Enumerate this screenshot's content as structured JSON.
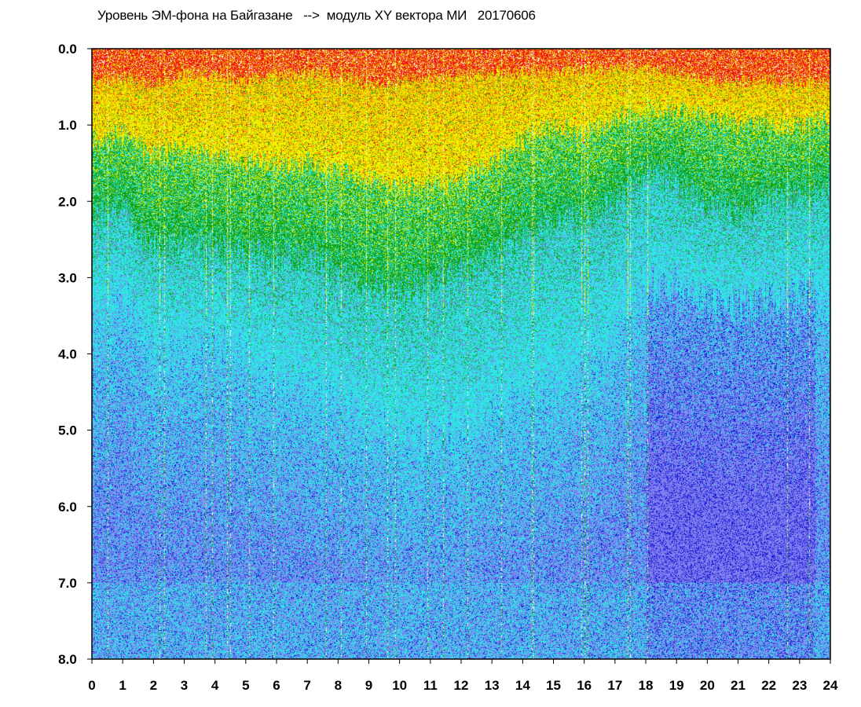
{
  "chart_data": {
    "type": "heatmap",
    "title": "Уровень ЭМ-фона на Байгазане   -->  модуль XY вектора МИ   20170606",
    "xlabel": "",
    "ylabel": "",
    "xlim": [
      0,
      24
    ],
    "ylim": [
      8.0,
      0.0
    ],
    "y_inverted": true,
    "x_ticks": [
      "0",
      "1",
      "2",
      "3",
      "4",
      "5",
      "6",
      "7",
      "8",
      "9",
      "10",
      "11",
      "12",
      "13",
      "14",
      "15",
      "16",
      "17",
      "18",
      "19",
      "20",
      "21",
      "22",
      "23",
      "24"
    ],
    "y_ticks": [
      "0.0",
      "1.0",
      "2.0",
      "3.0",
      "4.0",
      "5.0",
      "6.0",
      "7.0",
      "8.0"
    ],
    "grid": false,
    "legend": "none",
    "colorscale": [
      "#1414d2",
      "#7f7ff0",
      "#2ee6e6",
      "#14a014",
      "#f0f000",
      "#f0a000",
      "#f01414"
    ],
    "background_color": "#ffffff",
    "hourly_band_profile": {
      "hours": [
        0,
        1,
        2,
        3,
        4,
        5,
        6,
        7,
        8,
        9,
        10,
        11,
        12,
        13,
        14,
        15,
        16,
        17,
        18,
        19,
        20,
        21,
        22,
        23,
        24
      ],
      "red_depth": [
        0.4,
        0.35,
        0.5,
        0.3,
        0.35,
        0.4,
        0.35,
        0.3,
        0.35,
        0.45,
        0.4,
        0.4,
        0.35,
        0.3,
        0.3,
        0.3,
        0.25,
        0.25,
        0.25,
        0.3,
        0.4,
        0.45,
        0.4,
        0.45,
        0.45
      ],
      "yellow_depth": [
        1.2,
        1.1,
        1.4,
        1.3,
        1.4,
        1.5,
        1.5,
        1.5,
        1.6,
        1.7,
        1.8,
        1.8,
        1.7,
        1.5,
        1.2,
        1.0,
        1.1,
        0.9,
        0.8,
        0.8,
        0.9,
        1.0,
        1.0,
        1.0,
        0.9
      ],
      "green_depth": [
        2.2,
        2.1,
        2.6,
        2.5,
        2.6,
        2.7,
        2.7,
        2.7,
        2.9,
        3.1,
        3.2,
        3.0,
        2.9,
        2.7,
        2.4,
        2.3,
        2.2,
        2.0,
        1.6,
        1.7,
        2.0,
        2.1,
        2.0,
        1.9,
        1.8
      ],
      "cyan_depth": [
        3.6,
        3.2,
        3.9,
        3.8,
        3.8,
        4.0,
        4.2,
        4.4,
        4.6,
        4.8,
        5.0,
        5.0,
        4.9,
        4.7,
        4.4,
        4.3,
        4.1,
        3.7,
        3.1,
        3.1,
        3.3,
        3.4,
        3.3,
        3.2,
        3.1
      ]
    },
    "vertical_streaks_hours": [
      0.5,
      2.2,
      2.35,
      3.7,
      3.9,
      4.4,
      4.5,
      5.1,
      5.9,
      7.6,
      8.1,
      8.9,
      9.6,
      9.85,
      10.9,
      11.4,
      12.2,
      13.3,
      14.3,
      14.35,
      15.9,
      16.0,
      16.1,
      17.4,
      17.5,
      18.05,
      22.6,
      23.3
    ]
  }
}
